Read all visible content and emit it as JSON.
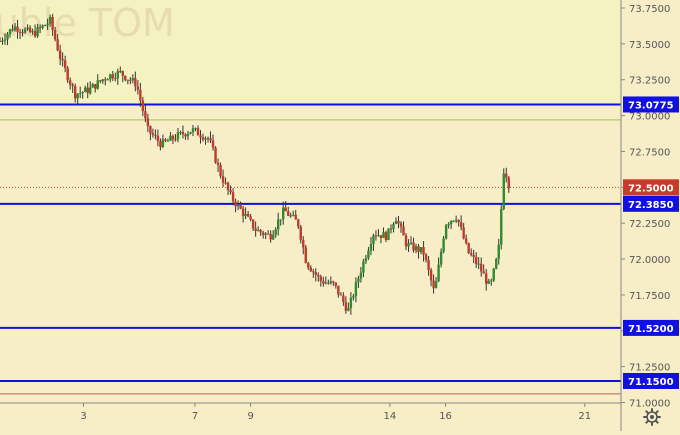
{
  "chart_data": {
    "type": "candlestick",
    "title": "Ruble TOM",
    "ylim": [
      71.0,
      73.8
    ],
    "y_ticks": [
      "73.7500",
      "73.5000",
      "73.2500",
      "73.0000",
      "72.7500",
      "72.5000",
      "72.2500",
      "72.0000",
      "71.7500",
      "71.5000",
      "71.2500",
      "71.0000"
    ],
    "x_ticks": [
      {
        "label": "3",
        "x": 3
      },
      {
        "label": "7",
        "x": 7
      },
      {
        "label": "9",
        "x": 9
      },
      {
        "label": "14",
        "x": 14
      },
      {
        "label": "16",
        "x": 16
      },
      {
        "label": "21",
        "x": 21
      }
    ],
    "x_range": [
      0,
      22.3
    ],
    "levels": [
      {
        "value": 73.0775,
        "label": "73.0775",
        "color": "#1010e0"
      },
      {
        "value": 72.385,
        "label": "72.3850",
        "color": "#1010e0"
      },
      {
        "value": 71.52,
        "label": "71.5200",
        "color": "#1010e0"
      },
      {
        "value": 71.15,
        "label": "71.1500",
        "color": "#1010e0"
      }
    ],
    "current_price": {
      "value": 72.5,
      "label": "72.5000",
      "color": "#c83a2a"
    },
    "secondary_line": {
      "value": 72.97,
      "color": "#a6c24a"
    },
    "bottom_line": {
      "value": 71.06,
      "color": "#c06060"
    },
    "colors": {
      "up": "#2e8b2e",
      "down": "#c0392b",
      "wick": "#333333",
      "background": "#f7eec8",
      "top_band": "#f4f2c0"
    },
    "anchors": [
      [
        0,
        73.52
      ],
      [
        0.5,
        73.62
      ],
      [
        1.2,
        73.57
      ],
      [
        1.8,
        73.66
      ],
      [
        2.2,
        73.38
      ],
      [
        2.7,
        73.15
      ],
      [
        3.2,
        73.18
      ],
      [
        3.8,
        73.27
      ],
      [
        4.3,
        73.3
      ],
      [
        4.9,
        73.22
      ],
      [
        5.3,
        72.9
      ],
      [
        5.8,
        72.8
      ],
      [
        6.4,
        72.86
      ],
      [
        6.9,
        72.9
      ],
      [
        7.5,
        72.84
      ],
      [
        7.9,
        72.6
      ],
      [
        8.3,
        72.43
      ],
      [
        8.7,
        72.33
      ],
      [
        9.2,
        72.2
      ],
      [
        9.7,
        72.16
      ],
      [
        10.2,
        72.34
      ],
      [
        10.7,
        72.25
      ],
      [
        11.0,
        71.98
      ],
      [
        11.5,
        71.85
      ],
      [
        12.0,
        71.82
      ],
      [
        12.5,
        71.64
      ],
      [
        13.0,
        71.95
      ],
      [
        13.4,
        72.18
      ],
      [
        13.9,
        72.16
      ],
      [
        14.2,
        72.3
      ],
      [
        14.6,
        72.1
      ],
      [
        15.2,
        72.05
      ],
      [
        15.6,
        71.76
      ],
      [
        16.0,
        72.25
      ],
      [
        16.4,
        72.3
      ],
      [
        16.8,
        72.05
      ],
      [
        17.2,
        71.95
      ],
      [
        17.6,
        71.8
      ],
      [
        17.9,
        72.05
      ],
      [
        18.1,
        72.65
      ],
      [
        18.3,
        72.5
      ]
    ]
  }
}
